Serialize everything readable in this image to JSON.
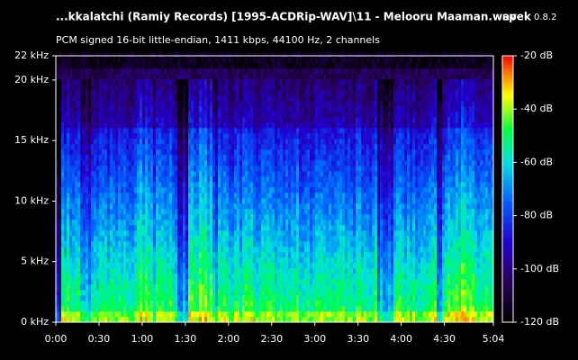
{
  "chart_data": {
    "type": "spectrogram",
    "title": "...kkalatchi (Ramiy Records) [1995-ACDRip-WAV]\\11 - Melooru Maaman.wav",
    "app_name": "spek",
    "app_version": "0.8.2",
    "subtitle": "PCM signed 16-bit little-endian, 1411 kbps, 44100 Hz, 2 channels",
    "xlim": [
      0,
      304
    ],
    "xticks": [
      {
        "value": 0,
        "label": "0:00"
      },
      {
        "value": 30,
        "label": "0:30"
      },
      {
        "value": 60,
        "label": "1:00"
      },
      {
        "value": 90,
        "label": "1:30"
      },
      {
        "value": 120,
        "label": "2:00"
      },
      {
        "value": 150,
        "label": "2:30"
      },
      {
        "value": 180,
        "label": "3:00"
      },
      {
        "value": 210,
        "label": "3:30"
      },
      {
        "value": 240,
        "label": "4:00"
      },
      {
        "value": 270,
        "label": "4:30"
      },
      {
        "value": 304,
        "label": "5:04"
      }
    ],
    "ylim": [
      0,
      22
    ],
    "yticks": [
      {
        "value": 0,
        "label": "0 kHz"
      },
      {
        "value": 5,
        "label": "5 kHz"
      },
      {
        "value": 10,
        "label": "10 kHz"
      },
      {
        "value": 15,
        "label": "15 kHz"
      },
      {
        "value": 20,
        "label": "20 kHz"
      },
      {
        "value": 22,
        "label": "22 kHz"
      }
    ],
    "zlim": [
      -120,
      -20
    ],
    "zticks": [
      {
        "value": -20,
        "label": "-20 dB"
      },
      {
        "value": -40,
        "label": "-40 dB"
      },
      {
        "value": -60,
        "label": "-60 dB"
      },
      {
        "value": -80,
        "label": "-80 dB"
      },
      {
        "value": -100,
        "label": "-100 dB"
      },
      {
        "value": -120,
        "label": "-120 dB"
      }
    ]
  }
}
